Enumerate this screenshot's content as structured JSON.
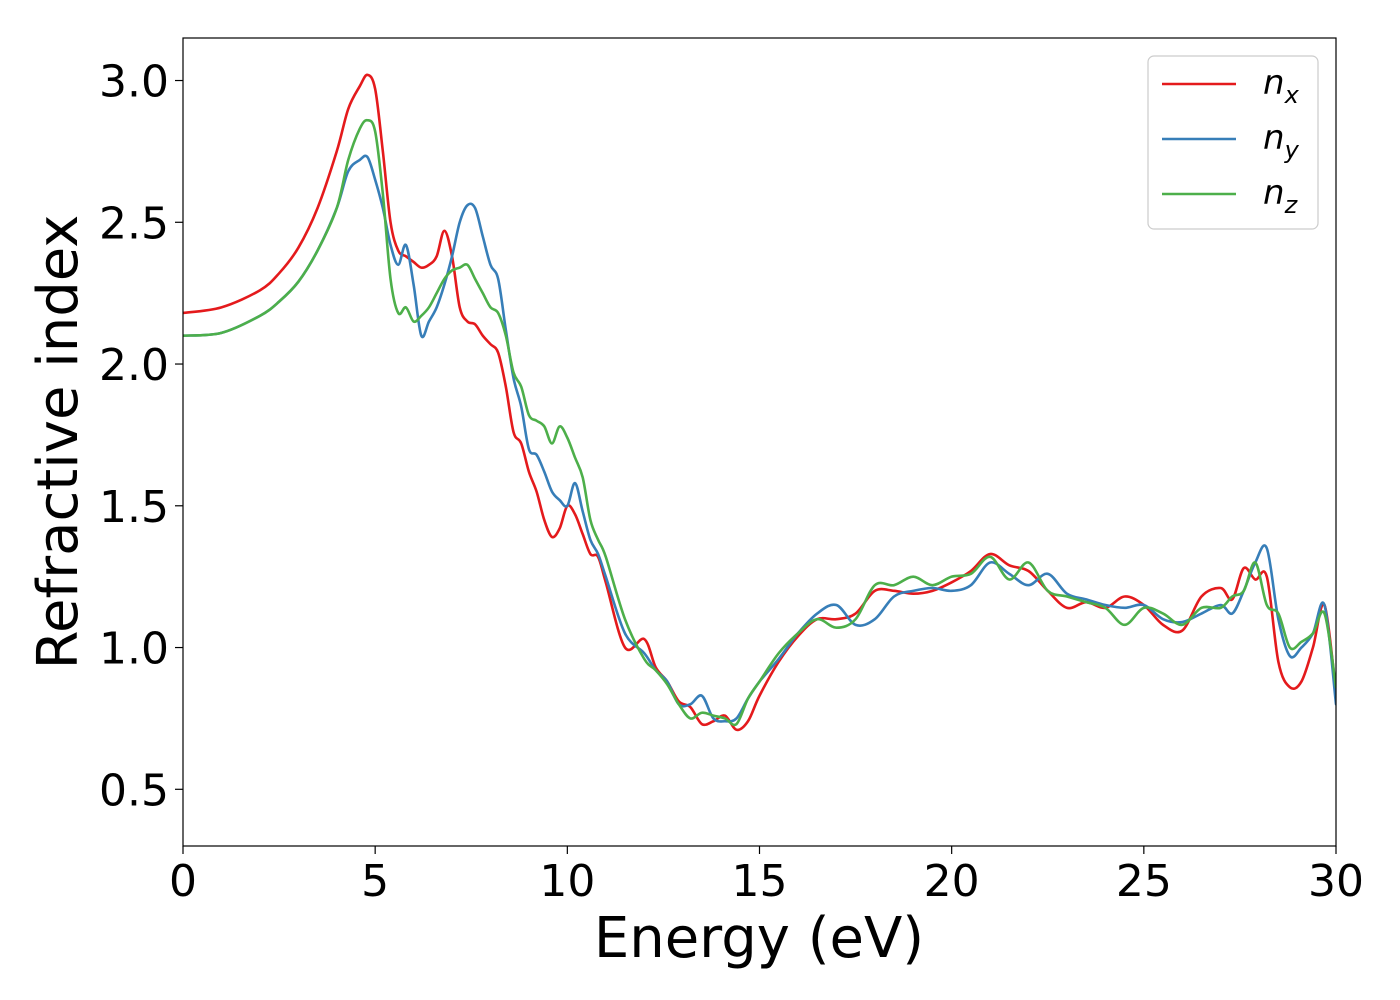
{
  "chart_data": {
    "type": "line",
    "xlabel": "Energy (eV)",
    "ylabel": "Refractive index",
    "xlim": [
      0,
      30
    ],
    "ylim": [
      0.3,
      3.15
    ],
    "xticks": [
      0,
      5,
      10,
      15,
      20,
      25,
      30
    ],
    "xtick_labels": [
      "0",
      "5",
      "10",
      "15",
      "20",
      "25",
      "30"
    ],
    "yticks": [
      0.5,
      1.0,
      1.5,
      2.0,
      2.5,
      3.0
    ],
    "ytick_labels": [
      "0.5",
      "1.0",
      "1.5",
      "2.0",
      "2.5",
      "3.0"
    ],
    "grid": false,
    "legend_position": "top-right",
    "series": [
      {
        "name": "n_x",
        "legend_base": "n",
        "legend_sub": "x",
        "color": "#e41a1c",
        "x": [
          0,
          1,
          2,
          2.5,
          3,
          3.5,
          4,
          4.3,
          4.6,
          4.8,
          5.0,
          5.2,
          5.4,
          5.6,
          5.8,
          6.0,
          6.2,
          6.4,
          6.6,
          6.8,
          7.0,
          7.2,
          7.4,
          7.6,
          7.8,
          8.0,
          8.2,
          8.4,
          8.6,
          8.8,
          9.0,
          9.2,
          9.4,
          9.6,
          9.8,
          10.0,
          10.2,
          10.4,
          10.6,
          10.8,
          11.0,
          11.5,
          12.0,
          12.3,
          12.6,
          12.9,
          13.2,
          13.5,
          13.8,
          14.1,
          14.4,
          14.7,
          15.0,
          15.5,
          16.0,
          16.5,
          17.0,
          17.5,
          18.0,
          18.5,
          19.0,
          19.5,
          20.0,
          20.5,
          21.0,
          21.5,
          22.0,
          22.5,
          23.0,
          23.5,
          24.0,
          24.5,
          25.0,
          25.5,
          26.0,
          26.5,
          27.0,
          27.3,
          27.6,
          27.9,
          28.2,
          28.5,
          28.8,
          29.1,
          29.4,
          29.7,
          30.0
        ],
        "values": [
          2.18,
          2.2,
          2.26,
          2.32,
          2.41,
          2.55,
          2.75,
          2.9,
          2.98,
          3.02,
          2.97,
          2.75,
          2.5,
          2.4,
          2.38,
          2.36,
          2.34,
          2.35,
          2.38,
          2.47,
          2.38,
          2.2,
          2.15,
          2.14,
          2.1,
          2.07,
          2.04,
          1.92,
          1.76,
          1.72,
          1.62,
          1.55,
          1.45,
          1.39,
          1.42,
          1.5,
          1.47,
          1.4,
          1.33,
          1.32,
          1.23,
          1.0,
          1.03,
          0.93,
          0.88,
          0.81,
          0.79,
          0.73,
          0.74,
          0.76,
          0.71,
          0.74,
          0.83,
          0.95,
          1.04,
          1.1,
          1.1,
          1.12,
          1.2,
          1.2,
          1.19,
          1.2,
          1.23,
          1.27,
          1.33,
          1.29,
          1.27,
          1.2,
          1.14,
          1.16,
          1.14,
          1.18,
          1.15,
          1.08,
          1.06,
          1.18,
          1.21,
          1.17,
          1.28,
          1.24,
          1.25,
          0.95,
          0.86,
          0.88,
          1.0,
          1.15,
          0.84
        ]
      },
      {
        "name": "n_y",
        "legend_base": "n",
        "legend_sub": "y",
        "color": "#377eb8",
        "x": [
          0,
          1,
          2,
          2.5,
          3,
          3.5,
          4,
          4.3,
          4.6,
          4.8,
          5.0,
          5.2,
          5.4,
          5.6,
          5.8,
          6.0,
          6.2,
          6.4,
          6.6,
          6.8,
          7.0,
          7.2,
          7.4,
          7.6,
          7.8,
          8.0,
          8.2,
          8.4,
          8.6,
          8.8,
          9.0,
          9.2,
          9.4,
          9.6,
          9.8,
          10.0,
          10.2,
          10.4,
          10.6,
          10.8,
          11.0,
          11.5,
          12.0,
          12.3,
          12.6,
          12.9,
          13.2,
          13.5,
          13.8,
          14.1,
          14.4,
          14.7,
          15.0,
          15.5,
          16.0,
          16.5,
          17.0,
          17.5,
          18.0,
          18.5,
          19.0,
          19.5,
          20.0,
          20.5,
          21.0,
          21.5,
          22.0,
          22.5,
          23.0,
          23.5,
          24.0,
          24.5,
          25.0,
          25.5,
          26.0,
          26.5,
          27.0,
          27.3,
          27.6,
          27.9,
          28.2,
          28.5,
          28.8,
          29.1,
          29.4,
          29.7,
          30.0
        ],
        "values": [
          2.1,
          2.11,
          2.17,
          2.22,
          2.29,
          2.4,
          2.55,
          2.68,
          2.72,
          2.73,
          2.65,
          2.55,
          2.42,
          2.35,
          2.42,
          2.28,
          2.1,
          2.15,
          2.2,
          2.28,
          2.38,
          2.5,
          2.56,
          2.55,
          2.45,
          2.35,
          2.3,
          2.12,
          1.95,
          1.85,
          1.7,
          1.68,
          1.62,
          1.55,
          1.52,
          1.5,
          1.58,
          1.48,
          1.38,
          1.33,
          1.25,
          1.05,
          0.98,
          0.92,
          0.88,
          0.8,
          0.8,
          0.83,
          0.75,
          0.74,
          0.75,
          0.82,
          0.88,
          0.96,
          1.05,
          1.12,
          1.15,
          1.08,
          1.1,
          1.18,
          1.2,
          1.21,
          1.2,
          1.22,
          1.3,
          1.26,
          1.22,
          1.26,
          1.19,
          1.17,
          1.15,
          1.14,
          1.15,
          1.1,
          1.09,
          1.12,
          1.15,
          1.12,
          1.2,
          1.3,
          1.35,
          1.1,
          0.97,
          1.0,
          1.05,
          1.15,
          0.8
        ]
      },
      {
        "name": "n_z",
        "legend_base": "n",
        "legend_sub": "z",
        "color": "#4daf4a",
        "x": [
          0,
          1,
          2,
          2.5,
          3,
          3.5,
          4,
          4.3,
          4.6,
          4.8,
          5.0,
          5.2,
          5.4,
          5.6,
          5.8,
          6.0,
          6.2,
          6.4,
          6.6,
          6.8,
          7.0,
          7.2,
          7.4,
          7.6,
          7.8,
          8.0,
          8.2,
          8.4,
          8.6,
          8.8,
          9.0,
          9.2,
          9.4,
          9.6,
          9.8,
          10.0,
          10.2,
          10.4,
          10.6,
          10.8,
          11.0,
          11.5,
          12.0,
          12.3,
          12.6,
          12.9,
          13.2,
          13.5,
          13.8,
          14.1,
          14.4,
          14.7,
          15.0,
          15.5,
          16.0,
          16.5,
          17.0,
          17.5,
          18.0,
          18.5,
          19.0,
          19.5,
          20.0,
          20.5,
          21.0,
          21.5,
          22.0,
          22.5,
          23.0,
          23.5,
          24.0,
          24.5,
          25.0,
          25.5,
          26.0,
          26.5,
          27.0,
          27.3,
          27.6,
          27.9,
          28.2,
          28.5,
          28.8,
          29.1,
          29.4,
          29.7,
          30.0
        ],
        "values": [
          2.1,
          2.11,
          2.17,
          2.22,
          2.29,
          2.4,
          2.55,
          2.72,
          2.83,
          2.86,
          2.82,
          2.6,
          2.3,
          2.18,
          2.2,
          2.15,
          2.17,
          2.2,
          2.25,
          2.3,
          2.33,
          2.34,
          2.35,
          2.3,
          2.25,
          2.2,
          2.18,
          2.1,
          1.97,
          1.92,
          1.82,
          1.8,
          1.78,
          1.72,
          1.78,
          1.74,
          1.67,
          1.6,
          1.45,
          1.38,
          1.32,
          1.1,
          0.96,
          0.92,
          0.87,
          0.8,
          0.75,
          0.77,
          0.76,
          0.75,
          0.73,
          0.82,
          0.88,
          0.98,
          1.05,
          1.1,
          1.07,
          1.1,
          1.22,
          1.22,
          1.25,
          1.22,
          1.25,
          1.26,
          1.32,
          1.24,
          1.3,
          1.2,
          1.18,
          1.16,
          1.14,
          1.08,
          1.14,
          1.12,
          1.08,
          1.14,
          1.14,
          1.18,
          1.2,
          1.3,
          1.15,
          1.12,
          1.0,
          1.02,
          1.05,
          1.12,
          0.86
        ]
      }
    ]
  }
}
